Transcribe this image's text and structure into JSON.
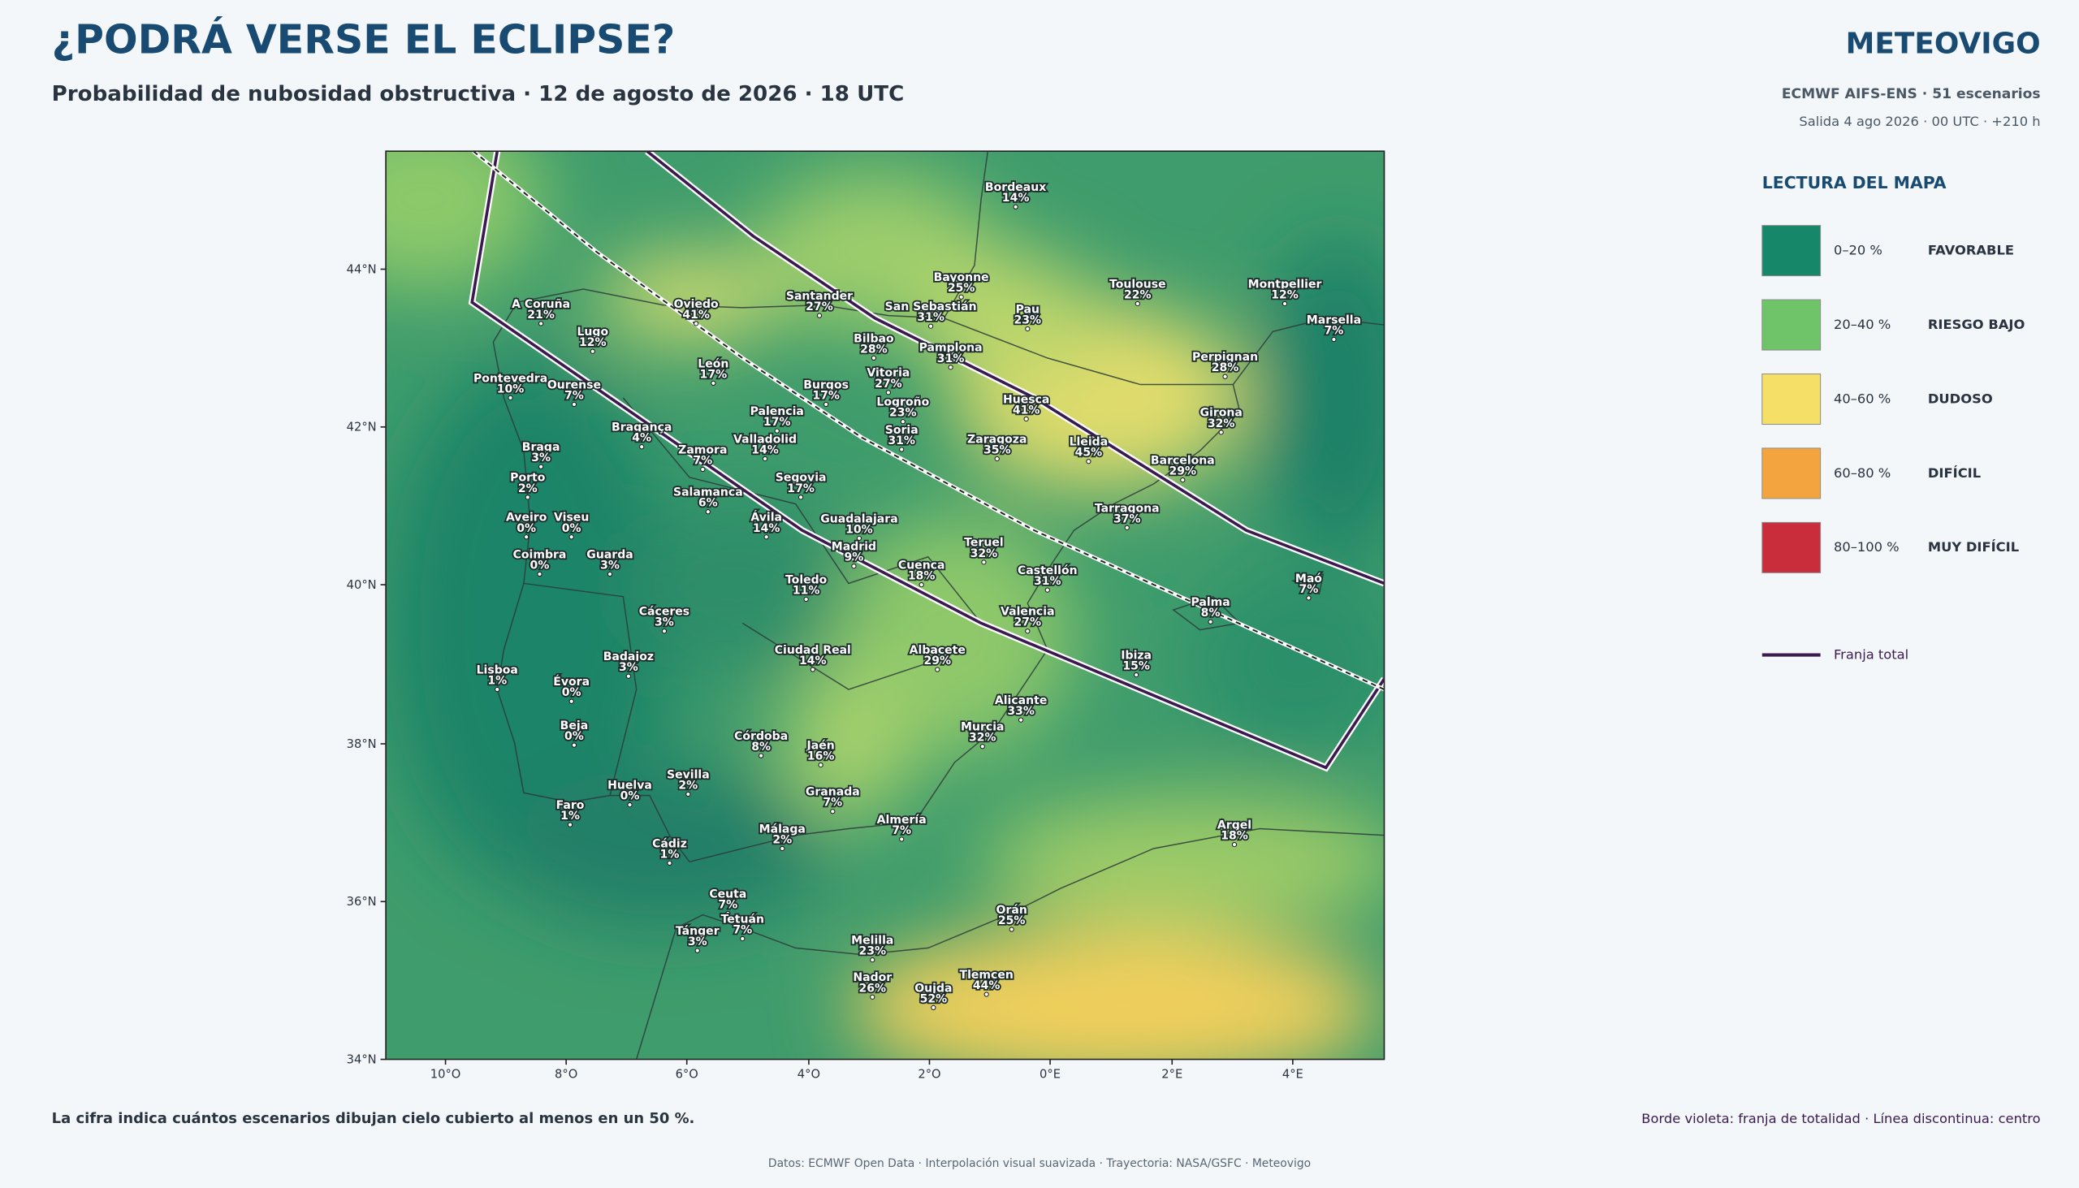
{
  "header": {
    "title": "¿PODRÁ VERSE EL ECLIPSE?",
    "subtitle": "Probabilidad de nubosidad obstructiva · 12 de agosto de 2026 · 18 UTC",
    "brand": "METEOVIGO",
    "model": "ECMWF AIFS-ENS · 51 escenarios",
    "run": "Salida 4 ago 2026 · 00 UTC · +210 h"
  },
  "map": {
    "lat_labels": [
      "44°N",
      "42°N",
      "40°N",
      "38°N",
      "36°N",
      "34°N"
    ],
    "lon_labels": [
      "10°O",
      "8°O",
      "6°O",
      "4°O",
      "2°O",
      "0°E",
      "2°E",
      "4°E"
    ],
    "cities": [
      {
        "name": "Bordeaux",
        "value": "14%"
      },
      {
        "name": "A Coruña",
        "value": "21%"
      },
      {
        "name": "Oviedo",
        "value": "41%"
      },
      {
        "name": "Santander",
        "value": "27%"
      },
      {
        "name": "San Sebastián",
        "value": "31%"
      },
      {
        "name": "Bayonne",
        "value": "25%"
      },
      {
        "name": "Pau",
        "value": "23%"
      },
      {
        "name": "Toulouse",
        "value": "22%"
      },
      {
        "name": "Montpellier",
        "value": "12%"
      },
      {
        "name": "Marsella",
        "value": "7%"
      },
      {
        "name": "Lugo",
        "value": "12%"
      },
      {
        "name": "Bilbao",
        "value": "28%"
      },
      {
        "name": "Pamplona",
        "value": "31%"
      },
      {
        "name": "Perpignan",
        "value": "28%"
      },
      {
        "name": "León",
        "value": "17%"
      },
      {
        "name": "Vitoria",
        "value": "27%"
      },
      {
        "name": "Pontevedra",
        "value": "10%"
      },
      {
        "name": "Ourense",
        "value": "7%"
      },
      {
        "name": "Burgos",
        "value": "17%"
      },
      {
        "name": "Logroño",
        "value": "23%"
      },
      {
        "name": "Huesca",
        "value": "41%"
      },
      {
        "name": "Girona",
        "value": "32%"
      },
      {
        "name": "Palencia",
        "value": "17%"
      },
      {
        "name": "Bragança",
        "value": "4%"
      },
      {
        "name": "Soria",
        "value": "31%"
      },
      {
        "name": "Valladolid",
        "value": "14%"
      },
      {
        "name": "Zaragoza",
        "value": "35%"
      },
      {
        "name": "Lleida",
        "value": "45%"
      },
      {
        "name": "Braga",
        "value": "3%"
      },
      {
        "name": "Zamora",
        "value": "7%"
      },
      {
        "name": "Barcelona",
        "value": "29%"
      },
      {
        "name": "Porto",
        "value": "2%"
      },
      {
        "name": "Segovia",
        "value": "17%"
      },
      {
        "name": "Salamanca",
        "value": "6%"
      },
      {
        "name": "Tarragona",
        "value": "37%"
      },
      {
        "name": "Aveiro",
        "value": "0%"
      },
      {
        "name": "Viseu",
        "value": "0%"
      },
      {
        "name": "Ávila",
        "value": "14%"
      },
      {
        "name": "Guadalajara",
        "value": "10%"
      },
      {
        "name": "Madrid",
        "value": "9%"
      },
      {
        "name": "Teruel",
        "value": "32%"
      },
      {
        "name": "Coimbra",
        "value": "0%"
      },
      {
        "name": "Guarda",
        "value": "3%"
      },
      {
        "name": "Cuenca",
        "value": "18%"
      },
      {
        "name": "Castellón",
        "value": "31%"
      },
      {
        "name": "Toledo",
        "value": "11%"
      },
      {
        "name": "Maó",
        "value": "7%"
      },
      {
        "name": "Palma",
        "value": "8%"
      },
      {
        "name": "Cáceres",
        "value": "3%"
      },
      {
        "name": "Valencia",
        "value": "27%"
      },
      {
        "name": "Ciudad Real",
        "value": "14%"
      },
      {
        "name": "Albacete",
        "value": "29%"
      },
      {
        "name": "Badajoz",
        "value": "3%"
      },
      {
        "name": "Ibiza",
        "value": "15%"
      },
      {
        "name": "Lisboa",
        "value": "1%"
      },
      {
        "name": "Évora",
        "value": "0%"
      },
      {
        "name": "Alicante",
        "value": "33%"
      },
      {
        "name": "Beja",
        "value": "0%"
      },
      {
        "name": "Murcia",
        "value": "32%"
      },
      {
        "name": "Córdoba",
        "value": "8%"
      },
      {
        "name": "Jaén",
        "value": "16%"
      },
      {
        "name": "Sevilla",
        "value": "2%"
      },
      {
        "name": "Huelva",
        "value": "0%"
      },
      {
        "name": "Granada",
        "value": "7%"
      },
      {
        "name": "Faro",
        "value": "1%"
      },
      {
        "name": "Almería",
        "value": "7%"
      },
      {
        "name": "Argel",
        "value": "18%"
      },
      {
        "name": "Málaga",
        "value": "2%"
      },
      {
        "name": "Cádiz",
        "value": "1%"
      },
      {
        "name": "Ceuta",
        "value": "7%"
      },
      {
        "name": "Orán",
        "value": "25%"
      },
      {
        "name": "Tetuán",
        "value": "7%"
      },
      {
        "name": "Tánger",
        "value": "3%"
      },
      {
        "name": "Melilla",
        "value": "23%"
      },
      {
        "name": "Tlemcen",
        "value": "44%"
      },
      {
        "name": "Nador",
        "value": "26%"
      },
      {
        "name": "Oujda",
        "value": "52%"
      }
    ]
  },
  "legend": {
    "title": "LECTURA DEL MAPA",
    "items": [
      {
        "range": "0–20 %",
        "label": "FAVORABLE",
        "color": "#17876a"
      },
      {
        "range": "20–40 %",
        "label": "RIESGO BAJO",
        "color": "#6fc46a"
      },
      {
        "range": "40–60 %",
        "label": "DUDOSO",
        "color": "#f5df66"
      },
      {
        "range": "60–80 %",
        "label": "DIFÍCIL",
        "color": "#f3a43f"
      },
      {
        "range": "80–100 %",
        "label": "MUY DIFÍCIL",
        "color": "#c92d3b"
      }
    ],
    "line": "Franja total",
    "line_color": "#3b1a4f"
  },
  "footer": {
    "note": "La cifra indica cuántos escenarios dibujan cielo cubierto al menos en un 50 %.",
    "line_note": "Borde violeta: franja de totalidad · Línea discontinua: centro",
    "credits": "Datos: ECMWF Open Data · Interpolación visual suavizada · Trayectoria: NASA/GSFC · Meteovigo"
  }
}
